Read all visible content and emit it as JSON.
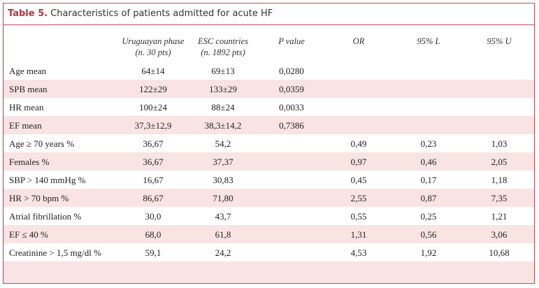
{
  "header": {
    "label": "Table 5.",
    "title": "Characteristics of patients admitted for acute HF"
  },
  "table": {
    "columns": [
      {
        "line1": "Uruguayan phase",
        "line2": "(n. 30 pts)"
      },
      {
        "line1": "ESC countries",
        "line2": "(n. 1892 pts)"
      },
      {
        "line1": "P value"
      },
      {
        "line1": "OR"
      },
      {
        "line1": "95% L"
      },
      {
        "line1": "95% U"
      }
    ],
    "rows": [
      [
        "Age mean",
        "64±14",
        "69±13",
        "0,0280",
        null,
        null,
        null
      ],
      [
        "SPB mean",
        "122±29",
        "133±29",
        "0,0359",
        null,
        null,
        null
      ],
      [
        "HR mean",
        "100±24",
        "88±24",
        "0,0033",
        null,
        null,
        null
      ],
      [
        "EF mean",
        "37,3±12,9",
        "38,3±14,2",
        "0,7386",
        null,
        null,
        null
      ],
      [
        "Age ≥ 70 years %",
        "36,67",
        "54,2",
        null,
        "0,49",
        "0,23",
        "1,03"
      ],
      [
        "Females %",
        "36,67",
        "37,37",
        null,
        "0,97",
        "0,46",
        "2,05"
      ],
      [
        "SBP > 140 mmHg %",
        "16,67",
        "30,83",
        null,
        "0,45",
        "0,17",
        "1,18"
      ],
      [
        "HR > 70 bpm %",
        "86,67",
        "71,80",
        null,
        "2,55",
        "0,87",
        "7,35"
      ],
      [
        "Atrial fibrillation %",
        "30,0",
        "43,7",
        null,
        "0,55",
        "0,25",
        "1,21"
      ],
      [
        "EF ≤ 40 %",
        "68,0",
        "61,8",
        null,
        "1,31",
        "0,56",
        "3,06"
      ],
      [
        "Creatinine > 1,5 mg/dl %",
        "59,1",
        "24,2",
        null,
        "4,53",
        "1,92",
        "10,68"
      ]
    ]
  }
}
